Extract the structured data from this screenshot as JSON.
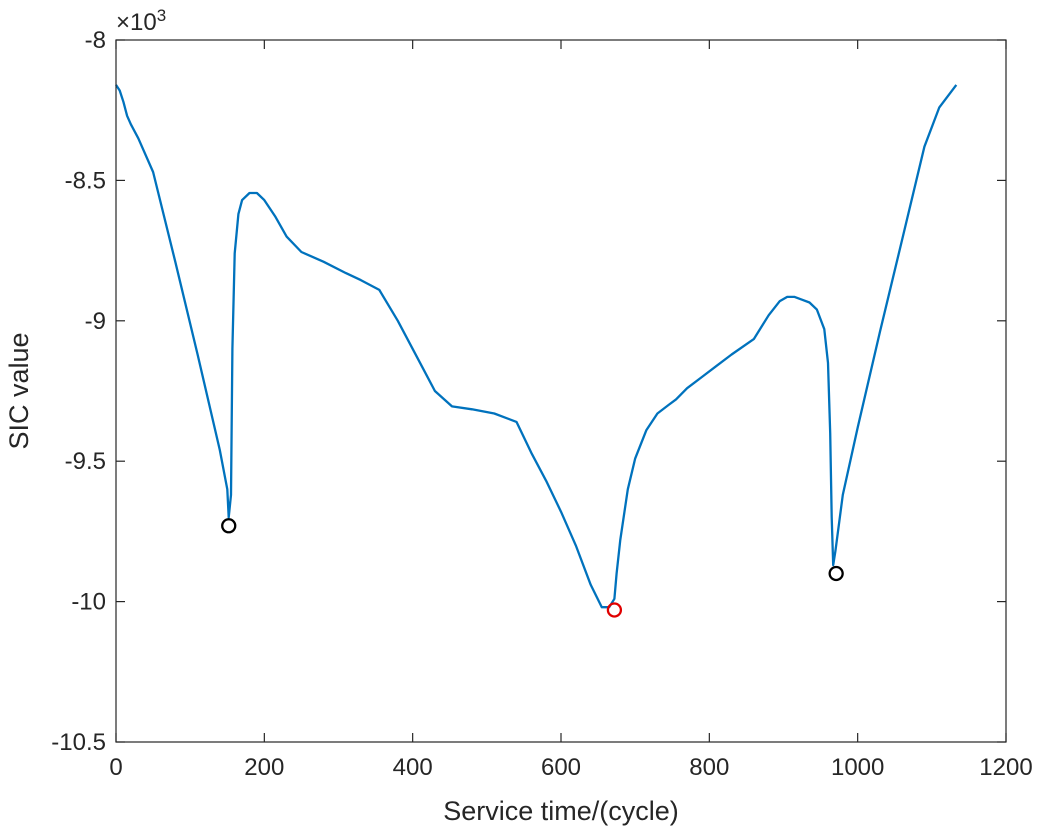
{
  "chart_data": {
    "type": "line",
    "xlabel": "Service time/(cycle)",
    "ylabel": "SIC value",
    "exponent_prefix": "×10",
    "exponent_power": "3",
    "xlim": [
      0,
      1200
    ],
    "ylim": [
      -10.5,
      -8
    ],
    "xticks": [
      0,
      200,
      400,
      600,
      800,
      1000,
      1200
    ],
    "yticks": [
      -8,
      -8.5,
      -9,
      -9.5,
      -10,
      -10.5
    ],
    "xtick_labels": [
      "0",
      "200",
      "400",
      "600",
      "800",
      "1000",
      "1200"
    ],
    "ytick_labels": [
      "-8",
      "-8.5",
      "-9",
      "-9.5",
      "-10",
      "-10.5"
    ],
    "grid": false,
    "series": [
      {
        "color": "#0072BD",
        "x": [
          0,
          5,
          10,
          15,
          20,
          30,
          50,
          80,
          110,
          140,
          150,
          152,
          155,
          157,
          160,
          165,
          170,
          180,
          190,
          200,
          215,
          230,
          250,
          280,
          310,
          330,
          355,
          380,
          410,
          430,
          453,
          480,
          510,
          540,
          560,
          580,
          600,
          620,
          640,
          655,
          665,
          672,
          675,
          680,
          690,
          700,
          715,
          730,
          745,
          755,
          770,
          790,
          810,
          830,
          860,
          880,
          895,
          905,
          915,
          925,
          935,
          945,
          955,
          960,
          963,
          965,
          967,
          970,
          980,
          1000,
          1030,
          1060,
          1090,
          1110,
          1133
        ],
        "y": [
          -8.16,
          -8.18,
          -8.22,
          -8.27,
          -8.3,
          -8.35,
          -8.47,
          -8.79,
          -9.12,
          -9.46,
          -9.6,
          -9.7,
          -9.62,
          -9.1,
          -8.76,
          -8.62,
          -8.57,
          -8.545,
          -8.545,
          -8.57,
          -8.63,
          -8.7,
          -8.755,
          -8.79,
          -8.83,
          -8.855,
          -8.89,
          -9.0,
          -9.15,
          -9.25,
          -9.305,
          -9.315,
          -9.33,
          -9.36,
          -9.47,
          -9.57,
          -9.68,
          -9.8,
          -9.94,
          -10.02,
          -10.02,
          -9.99,
          -9.9,
          -9.78,
          -9.6,
          -9.49,
          -9.39,
          -9.33,
          -9.3,
          -9.28,
          -9.24,
          -9.2,
          -9.16,
          -9.12,
          -9.065,
          -8.98,
          -8.93,
          -8.915,
          -8.915,
          -8.925,
          -8.935,
          -8.96,
          -9.03,
          -9.15,
          -9.4,
          -9.7,
          -9.87,
          -9.82,
          -9.62,
          -9.38,
          -9.04,
          -8.71,
          -8.38,
          -8.24,
          -8.16
        ]
      }
    ],
    "markers": [
      {
        "x": 152,
        "y": -9.73,
        "color": "#000000"
      },
      {
        "x": 672,
        "y": -10.03,
        "color": "#E00000"
      },
      {
        "x": 971,
        "y": -9.9,
        "color": "#000000"
      }
    ]
  }
}
